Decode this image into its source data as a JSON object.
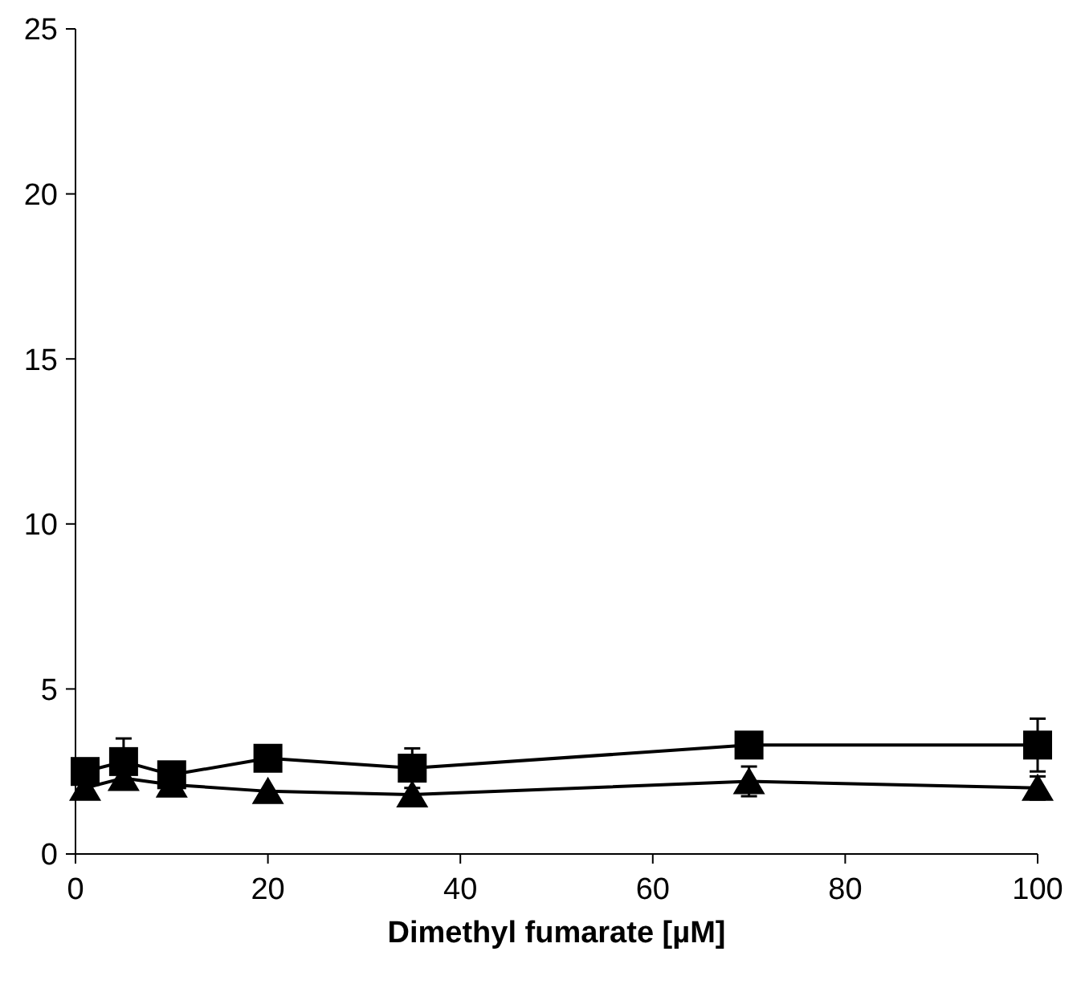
{
  "chart_data": {
    "type": "line",
    "xlabel": "Dimethyl fumarate [µM]",
    "x": [
      1,
      5,
      10,
      20,
      35,
      70,
      100
    ],
    "series": [
      {
        "color": "#000000",
        "marker": "square",
        "values": [
          2.5,
          2.8,
          2.4,
          2.9,
          2.6,
          3.3,
          3.3
        ],
        "errors": [
          null,
          0.7,
          null,
          null,
          0.6,
          0.2,
          0.8
        ]
      },
      {
        "color": "#000000",
        "marker": "triangle",
        "values": [
          2.0,
          2.3,
          2.1,
          1.9,
          1.8,
          2.2,
          2.0
        ],
        "errors": [
          null,
          null,
          null,
          null,
          null,
          0.45,
          0.35
        ]
      }
    ],
    "xlim": [
      0,
      100
    ],
    "xticks": [
      0,
      20,
      40,
      60,
      80,
      100
    ],
    "ylim": [
      0,
      25
    ],
    "yticks": [
      0,
      5,
      10,
      15,
      20,
      25
    ]
  }
}
